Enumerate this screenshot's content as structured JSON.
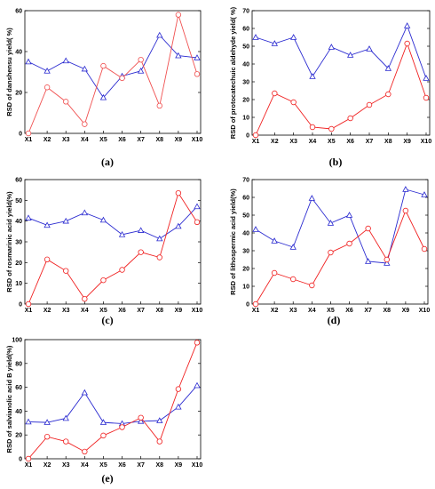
{
  "chart_data": [
    {
      "panel_label": "(a)",
      "type": "line",
      "ylabel": "RSD of danshensu yield( %)",
      "categories": [
        "X1",
        "X2",
        "X3",
        "X4",
        "X5",
        "X6",
        "X7",
        "X8",
        "X9",
        "X10"
      ],
      "ylim": [
        0,
        60
      ],
      "yticks": [
        0,
        20,
        40,
        60
      ],
      "series": [
        {
          "marker": "triangle",
          "color": "#2a2ad0",
          "values": [
            35,
            30.5,
            35.5,
            31.5,
            17.5,
            28,
            30.5,
            48,
            38,
            37
          ]
        },
        {
          "marker": "circle",
          "color": "#f05050",
          "values": [
            0,
            22.5,
            15.5,
            4.5,
            33,
            27,
            36,
            13.5,
            58,
            29
          ]
        }
      ]
    },
    {
      "panel_label": "(b)",
      "type": "line",
      "ylabel": "RSD of protocatechuic aldehyde yield( %)",
      "categories": [
        "X1",
        "X2",
        "X3",
        "X4",
        "X5",
        "X6",
        "X7",
        "X8",
        "X9",
        "X10"
      ],
      "ylim": [
        0,
        70
      ],
      "yticks": [
        0,
        10,
        20,
        30,
        40,
        50,
        60,
        70
      ],
      "series": [
        {
          "marker": "triangle",
          "color": "#2a2ad0",
          "values": [
            55,
            51.5,
            55,
            33,
            49.5,
            45,
            48.5,
            37.5,
            61.5,
            32
          ]
        },
        {
          "marker": "circle",
          "color": "#f02020",
          "values": [
            0,
            23.5,
            18.5,
            4.5,
            3.5,
            9.5,
            17,
            23,
            51.5,
            21
          ]
        }
      ]
    },
    {
      "panel_label": "(c)",
      "type": "line",
      "ylabel": "RSD of rosmarinic acid yield(%)",
      "categories": [
        "X1",
        "X2",
        "X3",
        "X4",
        "X5",
        "X6",
        "X7",
        "X8",
        "X9",
        "X10"
      ],
      "ylim": [
        0,
        60
      ],
      "yticks": [
        0,
        10,
        20,
        30,
        40,
        50,
        60
      ],
      "series": [
        {
          "marker": "triangle",
          "color": "#2a2ad0",
          "values": [
            41.5,
            38,
            40,
            44,
            40.5,
            33.5,
            35.5,
            31.5,
            37.5,
            47
          ]
        },
        {
          "marker": "circle",
          "color": "#f02020",
          "values": [
            0,
            21.5,
            16,
            2.5,
            11.5,
            16.5,
            25,
            22.5,
            53.5,
            39.5
          ]
        }
      ]
    },
    {
      "panel_label": "(d)",
      "type": "line",
      "ylabel": "RSD of lithospermic acid yield(%)",
      "categories": [
        "X1",
        "X2",
        "X3",
        "X4",
        "X5",
        "X6",
        "X7",
        "X8",
        "X9",
        "X10"
      ],
      "ylim": [
        0,
        70
      ],
      "yticks": [
        0,
        10,
        20,
        30,
        40,
        50,
        60,
        70
      ],
      "series": [
        {
          "marker": "triangle",
          "color": "#2a2ad0",
          "values": [
            42,
            35.5,
            32,
            59.5,
            45.5,
            50,
            24,
            23,
            64.5,
            61.5
          ]
        },
        {
          "marker": "circle",
          "color": "#f02020",
          "values": [
            0,
            17.5,
            14,
            10.5,
            29,
            34,
            42.5,
            25,
            52.5,
            31
          ]
        }
      ]
    },
    {
      "panel_label": "(e)",
      "type": "line",
      "ylabel": "RSD of salvianolic acid B yield(%)",
      "categories": [
        "X1",
        "X2",
        "X3",
        "X4",
        "X5",
        "X6",
        "X7",
        "X8",
        "X9",
        "X10"
      ],
      "ylim": [
        0,
        100
      ],
      "yticks": [
        0,
        20,
        40,
        60,
        80,
        100
      ],
      "series": [
        {
          "marker": "triangle",
          "color": "#2a2ad0",
          "values": [
            31,
            30.5,
            34,
            55.5,
            30.5,
            29.5,
            31.5,
            32,
            43.5,
            61.5
          ]
        },
        {
          "marker": "circle",
          "color": "#f02020",
          "values": [
            0,
            18.5,
            14.5,
            6,
            19.5,
            26.5,
            34.5,
            14.5,
            58.5,
            97.5
          ]
        }
      ]
    }
  ]
}
